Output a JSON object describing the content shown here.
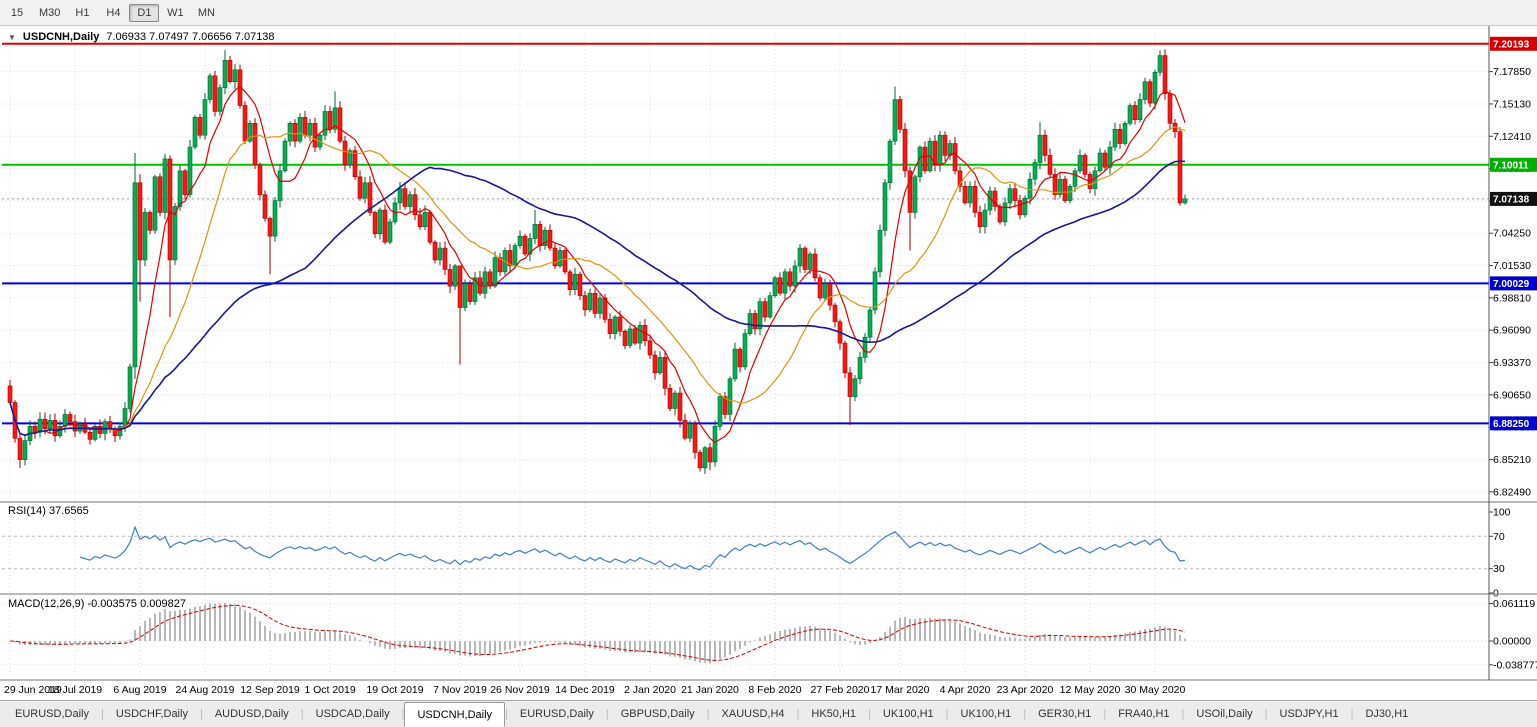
{
  "toolbar": {
    "timeframes": [
      "15",
      "M30",
      "H1",
      "H4",
      "D1",
      "W1",
      "MN"
    ],
    "active": "D1"
  },
  "window": {
    "title_symbol": "USDCNH,Daily",
    "title_ohlc": "7.06933 7.07497 7.06656 7.07138"
  },
  "price_axis": {
    "grid_start": 7.1785,
    "grid_step": 0.0272,
    "grid_count": 14
  },
  "levels": [
    {
      "price": 7.20193,
      "label": "7.20193",
      "color": "#dd0000",
      "tag_bg": "#d40000"
    },
    {
      "price": 7.10011,
      "label": "7.10011",
      "color": "#00c400",
      "tag_bg": "#00ad00"
    },
    {
      "price": 7.00029,
      "label": "7.00029",
      "color": "#0000e6",
      "tag_bg": "#0000cc"
    },
    {
      "price": 6.8825,
      "label": "6.88250",
      "color": "#0000e6",
      "tag_bg": "#0000cc"
    }
  ],
  "current_price": {
    "value": 7.07138,
    "label": "7.07138",
    "tag_bg": "#111111"
  },
  "chart_data": {
    "type": "candlestick",
    "symbol": "USDCNH",
    "period": "Daily",
    "ohlc": {
      "open": 7.06933,
      "high": 7.07497,
      "low": 7.06656,
      "close": 7.07138
    },
    "y_range": [
      6.818,
      7.211
    ],
    "first_open": 6.914,
    "closes": [
      6.9,
      6.87,
      6.852,
      6.868,
      6.88,
      6.875,
      6.886,
      6.878,
      6.885,
      6.872,
      6.88,
      6.89,
      6.884,
      6.876,
      6.882,
      6.875,
      6.869,
      6.88,
      6.874,
      6.884,
      6.878,
      6.872,
      6.88,
      6.895,
      6.93,
      7.085,
      7.02,
      7.06,
      7.045,
      7.09,
      7.06,
      7.105,
      7.02,
      7.065,
      7.095,
      7.075,
      7.115,
      7.14,
      7.125,
      7.155,
      7.175,
      7.145,
      7.165,
      7.188,
      7.17,
      7.18,
      7.15,
      7.12,
      7.135,
      7.1,
      7.075,
      7.055,
      7.04,
      7.07,
      7.095,
      7.12,
      7.135,
      7.12,
      7.14,
      7.125,
      7.135,
      7.115,
      7.125,
      7.145,
      7.13,
      7.148,
      7.12,
      7.1,
      7.112,
      7.09,
      7.072,
      7.085,
      7.06,
      7.042,
      7.062,
      7.035,
      7.052,
      7.068,
      7.08,
      7.065,
      7.075,
      7.058,
      7.048,
      7.06,
      7.035,
      7.02,
      7.03,
      7.012,
      6.998,
      7.015,
      6.98,
      7.0,
      6.985,
      7.005,
      6.992,
      7.01,
      6.998,
      7.022,
      7.01,
      7.028,
      7.015,
      7.032,
      7.04,
      7.025,
      7.038,
      7.05,
      7.032,
      7.045,
      7.03,
      7.015,
      7.028,
      7.01,
      6.995,
      7.008,
      6.99,
      6.978,
      6.992,
      6.975,
      6.988,
      6.97,
      6.958,
      6.972,
      6.96,
      6.948,
      6.962,
      6.95,
      6.965,
      6.952,
      6.94,
      6.925,
      6.938,
      6.912,
      6.895,
      6.908,
      6.885,
      6.87,
      6.882,
      6.858,
      6.845,
      6.862,
      6.85,
      6.88,
      6.905,
      6.89,
      6.92,
      6.945,
      6.93,
      6.958,
      6.975,
      6.962,
      6.985,
      6.972,
      6.99,
      7.005,
      6.992,
      7.01,
      6.998,
      7.015,
      7.03,
      7.012,
      7.025,
      7.005,
      6.988,
      7.0,
      6.982,
      6.968,
      6.95,
      6.925,
      6.905,
      6.92,
      6.938,
      6.955,
      6.978,
      7.01,
      7.045,
      7.085,
      7.12,
      7.155,
      7.13,
      7.095,
      7.06,
      7.09,
      7.115,
      7.095,
      7.12,
      7.1,
      7.125,
      7.108,
      7.118,
      7.095,
      7.082,
      7.068,
      7.082,
      7.06,
      7.048,
      7.062,
      7.078,
      7.065,
      7.052,
      7.068,
      7.08,
      7.07,
      7.058,
      7.072,
      7.088,
      7.102,
      7.125,
      7.108,
      7.092,
      7.075,
      7.088,
      7.07,
      7.082,
      7.095,
      7.108,
      7.092,
      7.08,
      7.095,
      7.11,
      7.098,
      7.115,
      7.13,
      7.118,
      7.135,
      7.15,
      7.138,
      7.155,
      7.17,
      7.152,
      7.178,
      7.192,
      7.16,
      7.135,
      7.128,
      7.068,
      7.0714
    ],
    "wick_overrides": {
      "2": {
        "l": 6.845
      },
      "25": {
        "h": 7.11,
        "l": 6.92
      },
      "26": {
        "h": 7.092,
        "l": 6.985
      },
      "32": {
        "h": 7.108,
        "l": 6.972
      },
      "43": {
        "h": 7.1965
      },
      "52": {
        "l": 7.008
      },
      "65": {
        "h": 7.162
      },
      "90": {
        "h": 7.004,
        "l": 6.932
      },
      "105": {
        "h": 7.062
      },
      "138": {
        "l": 6.842
      },
      "140": {
        "l": 6.843
      },
      "168": {
        "l": 6.881
      },
      "177": {
        "h": 7.166
      },
      "180": {
        "l": 7.028
      },
      "206": {
        "h": 7.136
      },
      "230": {
        "h": 7.1965
      },
      "235": {
        "h": 7.07497,
        "l": 7.06656
      }
    },
    "x_ticks": [
      {
        "i": 0,
        "label": "29 Jun 2019"
      },
      {
        "i": 13,
        "label": "18 Jul 2019"
      },
      {
        "i": 26,
        "label": "6 Aug 2019"
      },
      {
        "i": 39,
        "label": "24 Aug 2019"
      },
      {
        "i": 52,
        "label": "12 Sep 2019"
      },
      {
        "i": 64,
        "label": "1 Oct 2019"
      },
      {
        "i": 77,
        "label": "19 Oct 2019"
      },
      {
        "i": 90,
        "label": "7 Nov 2019"
      },
      {
        "i": 102,
        "label": "26 Nov 2019"
      },
      {
        "i": 115,
        "label": "14 Dec 2019"
      },
      {
        "i": 128,
        "label": "2 Jan 2020"
      },
      {
        "i": 140,
        "label": "21 Jan 2020"
      },
      {
        "i": 153,
        "label": "8 Feb 2020"
      },
      {
        "i": 166,
        "label": "27 Feb 2020"
      },
      {
        "i": 178,
        "label": "17 Mar 2020"
      },
      {
        "i": 191,
        "label": "4 Apr 2020"
      },
      {
        "i": 203,
        "label": "23 Apr 2020"
      },
      {
        "i": 216,
        "label": "12 May 2020"
      },
      {
        "i": 229,
        "label": "30 May 2020"
      }
    ],
    "moving_averages": [
      {
        "period": 8,
        "color": "#e00000"
      },
      {
        "period": 20,
        "color": "#d89614"
      },
      {
        "period": 60,
        "color": "#181890"
      }
    ]
  },
  "rsi": {
    "display": "RSI(14) 37.6565",
    "period": 14,
    "value": 37.6565,
    "axis": [
      100,
      70,
      30,
      0
    ],
    "levels": [
      70,
      30
    ],
    "line_color": "#4080c0"
  },
  "macd": {
    "display": "MACD(12,26,9) -0.003575 0.009827",
    "fast": 12,
    "slow": 26,
    "signal": 9,
    "main_value": -0.003575,
    "signal_value": 0.009827,
    "axis_labels": [
      0.061119,
      0,
      -0.038777
    ],
    "hist_color": "#b8b8b8",
    "signal_color": "#cc0000"
  },
  "tabs": {
    "items": [
      "EURUSD,Daily",
      "USDCHF,Daily",
      "AUDUSD,Daily",
      "USDCAD,Daily",
      "USDCNH,Daily",
      "EURUSD,Daily",
      "GBPUSD,Daily",
      "XAUUSD,H4",
      "HK50,H1",
      "UK100,H1",
      "UK100,H1",
      "GER30,H1",
      "FRA40,H1",
      "USOil,Daily",
      "USDJPY,H1",
      "DJ30,H1"
    ],
    "active_index": 4
  },
  "colors": {
    "up_fill": "#00b050",
    "up_stroke": "#006633",
    "down_fill": "#ff1414",
    "down_stroke": "#aa0000",
    "grid": "#d9d9d9",
    "bg": "#ffffff",
    "axis_text": "#000000"
  }
}
